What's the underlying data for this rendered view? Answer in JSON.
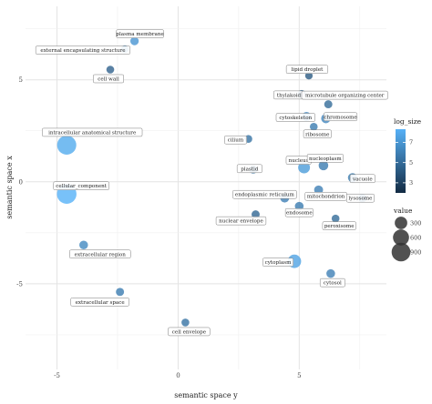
{
  "chart_data": {
    "type": "scatter",
    "xlabel": "semantic space y",
    "ylabel": "semantic space x",
    "xlim": [
      -6.3,
      8.6
    ],
    "ylim": [
      -9.2,
      8.6
    ],
    "xticks": [
      -5,
      0,
      5
    ],
    "yticks": [
      5,
      0,
      -5
    ],
    "grid": true,
    "legends": {
      "color": {
        "title": "log_size",
        "ticks": [
          3,
          5,
          7
        ],
        "low_color": "#132b43",
        "high_color": "#56b1f7"
      },
      "size": {
        "title": "value",
        "ticks": [
          300,
          600,
          900
        ]
      }
    },
    "points": [
      {
        "label": "plasma membrane",
        "x": -1.8,
        "y": 6.9,
        "log_size": 7.0,
        "value": 80
      },
      {
        "label": "external encapsulating structure",
        "x": -2.2,
        "y": 6.5,
        "log_size": 5.8,
        "value": 60
      },
      {
        "label": "cell wall",
        "x": -2.8,
        "y": 5.5,
        "log_size": 4.6,
        "value": 60
      },
      {
        "label": "lipid droplet",
        "x": 5.4,
        "y": 5.2,
        "log_size": 4.2,
        "value": 50
      },
      {
        "label": "thylakoid",
        "x": 5.1,
        "y": 4.3,
        "log_size": 4.8,
        "value": 70
      },
      {
        "label": "microtubule organizing center",
        "x": 6.2,
        "y": 3.8,
        "log_size": 5.0,
        "value": 70
      },
      {
        "label": "cytoskeleton",
        "x": 5.3,
        "y": 3.2,
        "log_size": 6.5,
        "value": 110
      },
      {
        "label": "chromosome",
        "x": 6.1,
        "y": 3.1,
        "log_size": 6.3,
        "value": 120
      },
      {
        "label": "intracellular anatomical structure",
        "x": -4.6,
        "y": 1.8,
        "log_size": 8.0,
        "value": 950
      },
      {
        "label": "ribosome",
        "x": 5.6,
        "y": 2.7,
        "log_size": 5.8,
        "value": 60
      },
      {
        "label": "cilium",
        "x": 2.9,
        "y": 2.1,
        "log_size": 5.4,
        "value": 60
      },
      {
        "label": "nucleus",
        "x": 5.2,
        "y": 0.7,
        "log_size": 7.3,
        "value": 250
      },
      {
        "label": "nucleoplasm",
        "x": 6.0,
        "y": 0.8,
        "log_size": 5.8,
        "value": 130
      },
      {
        "label": "plastid",
        "x": 3.1,
        "y": 0.6,
        "log_size": 5.4,
        "value": 70
      },
      {
        "label": "vacuole",
        "x": 7.2,
        "y": 0.2,
        "log_size": 5.9,
        "value": 110
      },
      {
        "label": "cellular_component",
        "x": -4.6,
        "y": -0.6,
        "log_size": 8.3,
        "value": 1000
      },
      {
        "label": "mitochondrion",
        "x": 5.8,
        "y": -0.4,
        "log_size": 6.0,
        "value": 100
      },
      {
        "label": "lysosome",
        "x": 7.6,
        "y": -0.8,
        "log_size": 5.4,
        "value": 90
      },
      {
        "label": "endoplasmic reticulum",
        "x": 4.4,
        "y": -0.8,
        "log_size": 6.0,
        "value": 100
      },
      {
        "label": "endosome",
        "x": 5.0,
        "y": -1.2,
        "log_size": 5.8,
        "value": 90
      },
      {
        "label": "nuclear envelope",
        "x": 3.2,
        "y": -1.6,
        "log_size": 4.8,
        "value": 70
      },
      {
        "label": "peroxisome",
        "x": 6.5,
        "y": -1.8,
        "log_size": 5.0,
        "value": 60
      },
      {
        "label": "extracellular region",
        "x": -3.9,
        "y": -3.1,
        "log_size": 6.4,
        "value": 90
      },
      {
        "label": "cytoplasm",
        "x": 4.8,
        "y": -3.9,
        "log_size": 7.6,
        "value": 370
      },
      {
        "label": "cytosol",
        "x": 6.3,
        "y": -4.5,
        "log_size": 6.0,
        "value": 90
      },
      {
        "label": "extracellular space",
        "x": -2.4,
        "y": -5.4,
        "log_size": 5.8,
        "value": 70
      },
      {
        "label": "cell envelope",
        "x": 0.3,
        "y": -6.9,
        "log_size": 5.4,
        "value": 60
      }
    ]
  }
}
